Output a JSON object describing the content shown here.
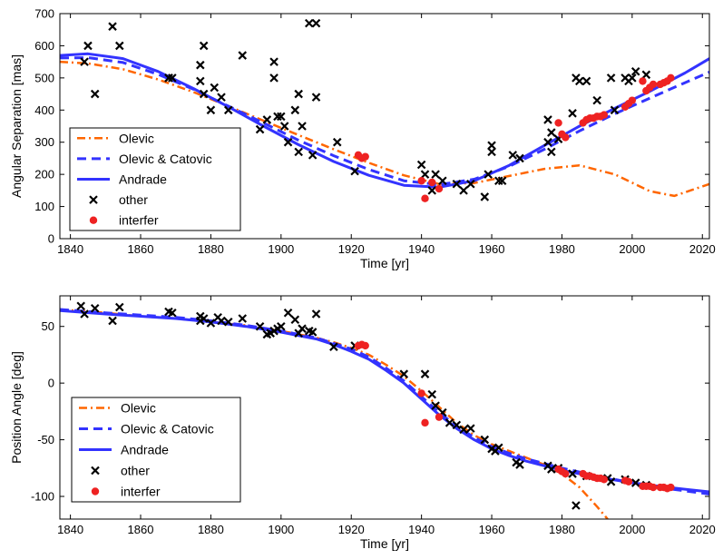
{
  "chart_data": [
    {
      "type": "scatter",
      "title": "",
      "xlabel": "Time [yr]",
      "ylabel": "Angular Separation [mas]",
      "xlim": [
        1837,
        2022
      ],
      "ylim": [
        0,
        700
      ],
      "xticks": [
        1840,
        1860,
        1880,
        1900,
        1920,
        1940,
        1960,
        1980,
        2000,
        2020
      ],
      "yticks": [
        0,
        100,
        200,
        300,
        400,
        500,
        600,
        700
      ],
      "legend": [
        "Olevic",
        "Olevic & Catovic",
        "Andrade",
        "other",
        "interfer"
      ],
      "legend_position": "bottom-left",
      "series": [
        {
          "name": "Olevic",
          "style": "dashdot",
          "color": "#ff6600",
          "x": [
            1837,
            1845,
            1855,
            1865,
            1875,
            1885,
            1895,
            1905,
            1915,
            1925,
            1935,
            1945,
            1955,
            1965,
            1975,
            1985,
            1995,
            2005,
            2012,
            2022
          ],
          "y": [
            550,
            545,
            527,
            495,
            456,
            412,
            367,
            322,
            278,
            236,
            197,
            170,
            173,
            195,
            217,
            228,
            200,
            148,
            133,
            170
          ]
        },
        {
          "name": "Olevic & Catovic",
          "style": "dashed",
          "color": "#3333ff",
          "x": [
            1837,
            1845,
            1855,
            1865,
            1875,
            1885,
            1895,
            1905,
            1915,
            1925,
            1935,
            1945,
            1955,
            1965,
            1975,
            1985,
            1995,
            2005,
            2015,
            2022
          ],
          "y": [
            562,
            563,
            548,
            511,
            465,
            412,
            360,
            306,
            258,
            215,
            180,
            168,
            185,
            225,
            278,
            335,
            388,
            437,
            485,
            518
          ]
        },
        {
          "name": "Andrade",
          "style": "solid",
          "color": "#3333ff",
          "x": [
            1837,
            1845,
            1855,
            1865,
            1875,
            1885,
            1895,
            1905,
            1915,
            1925,
            1935,
            1945,
            1955,
            1965,
            1975,
            1985,
            1995,
            2005,
            2015,
            2022
          ],
          "y": [
            570,
            575,
            560,
            520,
            467,
            410,
            350,
            292,
            240,
            197,
            166,
            160,
            180,
            228,
            290,
            350,
            405,
            458,
            515,
            560
          ]
        },
        {
          "name": "other",
          "marker": "x",
          "color": "#000000",
          "x": [
            1844,
            1845,
            1847,
            1852,
            1854,
            1868,
            1868,
            1869,
            1877,
            1877,
            1878,
            1878,
            1880,
            1881,
            1883,
            1885,
            1889,
            1894,
            1896,
            1898,
            1898,
            1899,
            1900,
            1901,
            1902,
            1904,
            1905,
            1905,
            1906,
            1908,
            1909,
            1910,
            1910,
            1916,
            1921,
            1940,
            1941,
            1943,
            1944,
            1946,
            1950,
            1952,
            1954,
            1958,
            1959,
            1960,
            1960,
            1962,
            1963,
            1966,
            1968,
            1976,
            1976,
            1977,
            1977,
            1979,
            1983,
            1984,
            1985,
            1987,
            1990,
            1994,
            1995,
            1998,
            1999,
            2000,
            2001,
            2004
          ],
          "y": [
            550,
            600,
            450,
            660,
            600,
            500,
            500,
            500,
            540,
            490,
            600,
            450,
            400,
            470,
            440,
            400,
            570,
            340,
            370,
            550,
            500,
            380,
            380,
            350,
            300,
            400,
            450,
            270,
            350,
            670,
            260,
            440,
            670,
            300,
            210,
            230,
            200,
            150,
            200,
            180,
            170,
            150,
            170,
            130,
            200,
            290,
            270,
            180,
            180,
            260,
            250,
            370,
            300,
            270,
            330,
            310,
            390,
            500,
            490,
            490,
            430,
            500,
            400,
            500,
            490,
            500,
            520,
            510
          ]
        },
        {
          "name": "interfer",
          "marker": "o",
          "color": "#ee2222",
          "x": [
            1922,
            1923,
            1924,
            1940,
            1941,
            1943,
            1945,
            1979,
            1980,
            1981,
            1986,
            1987,
            1988,
            1989,
            1990,
            1991,
            1992,
            1998,
            1999,
            2000,
            2003,
            2004,
            2005,
            2006,
            2008,
            2009,
            2010,
            2011
          ],
          "y": [
            260,
            250,
            255,
            180,
            125,
            175,
            155,
            360,
            325,
            315,
            360,
            370,
            375,
            375,
            380,
            380,
            385,
            410,
            420,
            430,
            490,
            460,
            470,
            480,
            480,
            485,
            490,
            500
          ]
        }
      ]
    },
    {
      "type": "scatter",
      "title": "",
      "xlabel": "Time [yr]",
      "ylabel": "Position Angle [deg]",
      "xlim": [
        1837,
        2022
      ],
      "ylim": [
        -120,
        77
      ],
      "xticks": [
        1840,
        1860,
        1880,
        1900,
        1920,
        1940,
        1960,
        1980,
        2000,
        2020
      ],
      "yticks": [
        -100,
        -50,
        0,
        50
      ],
      "legend": [
        "Olevic",
        "Olevic & Catovic",
        "Andrade",
        "other",
        "interfer"
      ],
      "legend_position": "bottom-left",
      "series": [
        {
          "name": "Olevic",
          "style": "dashdot",
          "color": "#ff6600",
          "x": [
            1837,
            1850,
            1860,
            1870,
            1880,
            1890,
            1900,
            1910,
            1915,
            1920,
            1925,
            1930,
            1935,
            1940,
            1945,
            1950,
            1955,
            1960,
            1965,
            1970,
            1975,
            1980,
            1985,
            1990,
            1993
          ],
          "y": [
            65,
            62,
            59,
            57,
            54,
            51,
            46,
            40,
            36,
            31,
            25,
            16,
            6,
            -7,
            -21,
            -35,
            -46,
            -54,
            -60,
            -66,
            -72,
            -80,
            -92,
            -109,
            -120
          ]
        },
        {
          "name": "Olevic & Catovic",
          "style": "dashed",
          "color": "#3333ff",
          "x": [
            1837,
            1850,
            1860,
            1870,
            1880,
            1890,
            1900,
            1910,
            1915,
            1920,
            1925,
            1930,
            1935,
            1940,
            1945,
            1950,
            1955,
            1960,
            1965,
            1970,
            1980,
            1990,
            2000,
            2010,
            2022
          ],
          "y": [
            65,
            62,
            60,
            58,
            55,
            51,
            46,
            40,
            35,
            30,
            23,
            13,
            2,
            -12,
            -26,
            -38,
            -48,
            -56,
            -62,
            -67,
            -75,
            -82,
            -88,
            -93,
            -98
          ]
        },
        {
          "name": "Andrade",
          "style": "solid",
          "color": "#3333ff",
          "x": [
            1837,
            1850,
            1860,
            1870,
            1880,
            1890,
            1900,
            1910,
            1915,
            1920,
            1925,
            1930,
            1935,
            1940,
            1945,
            1950,
            1955,
            1960,
            1965,
            1970,
            1980,
            1990,
            2000,
            2010,
            2022
          ],
          "y": [
            64,
            61,
            59,
            57,
            54,
            50,
            45,
            39,
            34,
            28,
            21,
            11,
            0,
            -14,
            -28,
            -40,
            -50,
            -58,
            -64,
            -69,
            -77,
            -83,
            -88,
            -92,
            -96
          ]
        },
        {
          "name": "other",
          "marker": "x",
          "color": "#000000",
          "x": [
            1843,
            1844,
            1847,
            1852,
            1854,
            1868,
            1869,
            1877,
            1877,
            1878,
            1880,
            1882,
            1883,
            1885,
            1889,
            1894,
            1896,
            1897,
            1898,
            1899,
            1900,
            1902,
            1904,
            1905,
            1906,
            1908,
            1909,
            1910,
            1915,
            1921,
            1935,
            1941,
            1943,
            1944,
            1946,
            1948,
            1950,
            1952,
            1954,
            1958,
            1960,
            1961,
            1962,
            1967,
            1968,
            1976,
            1977,
            1979,
            1983,
            1984,
            1987,
            1993,
            1994,
            1998,
            2001,
            2004
          ],
          "y": [
            68,
            61,
            66,
            55,
            67,
            63,
            62,
            59,
            55,
            57,
            53,
            58,
            55,
            54,
            57,
            50,
            43,
            44,
            46,
            48,
            50,
            62,
            56,
            44,
            48,
            46,
            45,
            61,
            32,
            33,
            8,
            8,
            -10,
            -20,
            -26,
            -35,
            -37,
            -41,
            -40,
            -50,
            -58,
            -60,
            -57,
            -70,
            -72,
            -73,
            -76,
            -75,
            -80,
            -108,
            -82,
            -84,
            -87,
            -85,
            -88,
            -90
          ]
        },
        {
          "name": "interfer",
          "marker": "o",
          "color": "#ee2222",
          "x": [
            1922,
            1923,
            1924,
            1940,
            1941,
            1945,
            1979,
            1980,
            1981,
            1986,
            1987,
            1988,
            1989,
            1990,
            1991,
            1992,
            1998,
            1999,
            2003,
            2004,
            2005,
            2006,
            2008,
            2009,
            2010,
            2011
          ],
          "y": [
            33,
            34,
            33,
            -9,
            -35,
            -30,
            -76,
            -78,
            -80,
            -80,
            -82,
            -82,
            -83,
            -84,
            -84,
            -85,
            -86,
            -87,
            -91,
            -91,
            -91,
            -92,
            -92,
            -92,
            -93,
            -92
          ]
        }
      ]
    }
  ]
}
